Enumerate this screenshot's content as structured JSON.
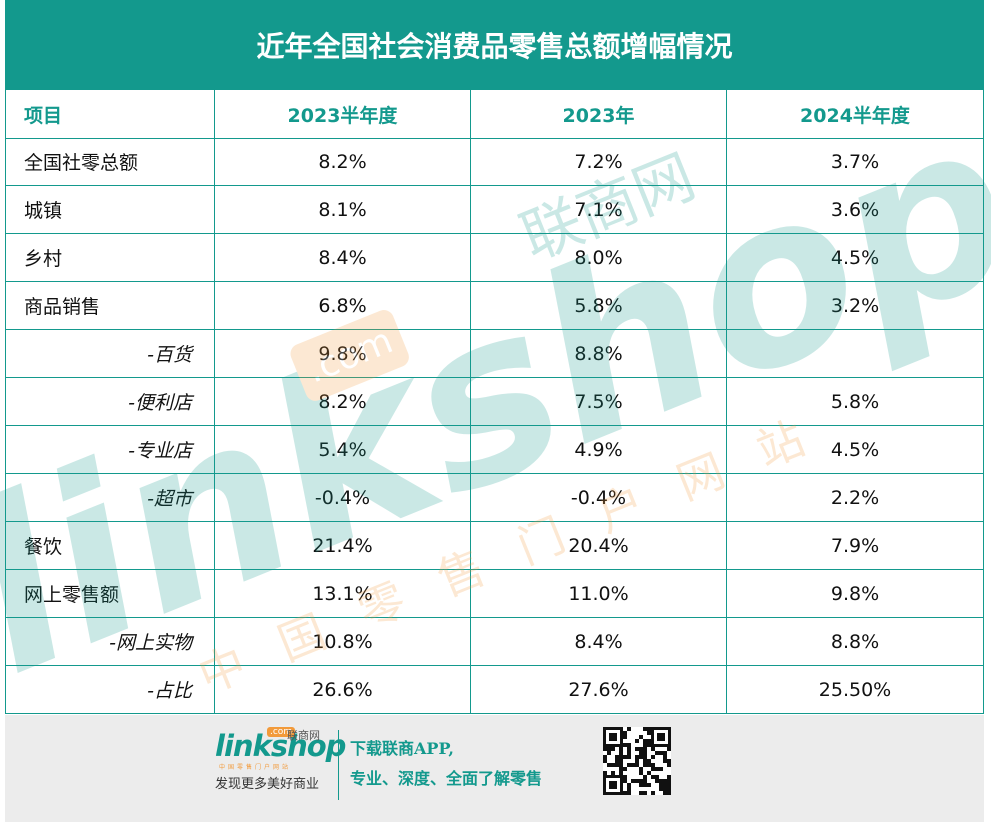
{
  "header": {
    "title": "近年全国社会消费品零售总额增幅情况"
  },
  "table": {
    "columns": [
      "项目",
      "2023半年度",
      "2023年",
      "2024半年度"
    ],
    "rows": [
      {
        "cells": [
          "全国社零总额",
          "8.2%",
          "7.2%",
          "3.7%"
        ],
        "indent": false
      },
      {
        "cells": [
          "城镇",
          "8.1%",
          "7.1%",
          "3.6%"
        ],
        "indent": false
      },
      {
        "cells": [
          "乡村",
          "8.4%",
          "8.0%",
          "4.5%"
        ],
        "indent": false
      },
      {
        "cells": [
          "商品销售",
          "6.8%",
          "5.8%",
          "3.2%"
        ],
        "indent": false
      },
      {
        "cells": [
          "-百货",
          "9.8%",
          "8.8%",
          null
        ],
        "indent": true
      },
      {
        "cells": [
          "-便利店",
          "8.2%",
          "7.5%",
          "5.8%"
        ],
        "indent": true
      },
      {
        "cells": [
          "-专业店",
          "5.4%",
          "4.9%",
          "4.5%"
        ],
        "indent": true
      },
      {
        "cells": [
          "-超市",
          "-0.4%",
          "-0.4%",
          "2.2%"
        ],
        "indent": true
      },
      {
        "cells": [
          "餐饮",
          "21.4%",
          "20.4%",
          "7.9%"
        ],
        "indent": false
      },
      {
        "cells": [
          "网上零售额",
          "13.1%",
          "11.0%",
          "9.8%"
        ],
        "indent": false
      },
      {
        "cells": [
          "-网上实物",
          "10.8%",
          "8.4%",
          "8.8%"
        ],
        "indent": true
      },
      {
        "cells": [
          "-占比",
          "26.6%",
          "27.6%",
          "25.50%"
        ],
        "indent": true
      }
    ]
  },
  "watermark": {
    "brand": "linkshop",
    "cn_name": "联商网",
    "domain": ".com",
    "tagline": "中国零售门户网站"
  },
  "footer": {
    "brand": "linkshop",
    "domain": ".com",
    "cn_name": "联商网",
    "tagline": "中国零售门户网站",
    "slogan": "发现更多美好商业",
    "download": "下载联商APP,",
    "description": "专业、深度、全面了解零售"
  }
}
